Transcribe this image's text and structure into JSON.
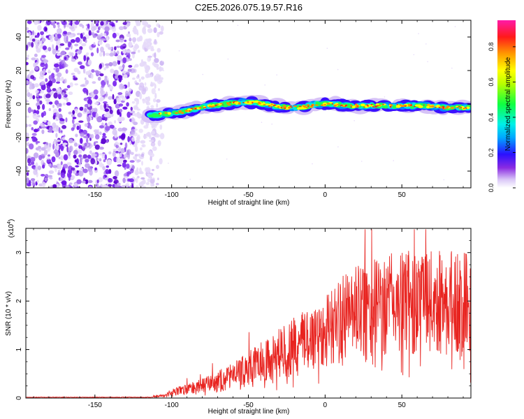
{
  "title": "C2E5.2026.075.19.57.R16",
  "colors": {
    "snr_line": "#e8231f",
    "noise_dark": "#6a00d8",
    "noise_light": "#d9c6f7"
  },
  "chart_data": [
    {
      "type": "heatmap",
      "name": "spectrogram",
      "xlabel": "Height of straight line (km)",
      "ylabel": "Frequency (Hz)",
      "xlim": [
        -195,
        95
      ],
      "ylim": [
        -50,
        50
      ],
      "x_ticks": [
        -150,
        -100,
        -50,
        0,
        50
      ],
      "y_ticks": [
        -40,
        -20,
        0,
        20,
        40
      ],
      "noise_region": [
        -195,
        -112
      ],
      "ridge_center": {
        "x": [
          -115,
          -105,
          -95,
          -85,
          -75,
          -65,
          -55,
          -45,
          -35,
          -25,
          -15,
          -5,
          5,
          15,
          25,
          35,
          45,
          55,
          65,
          75,
          85,
          95
        ],
        "freq": [
          -7,
          -6,
          -5,
          -3,
          -1,
          0,
          1,
          1,
          -1,
          -2,
          -2,
          0,
          0,
          -1,
          -1,
          -1,
          -1,
          -1,
          -1,
          -2,
          -2,
          -2
        ]
      },
      "colorbar": {
        "label": "Normalized spectral amplitude",
        "range": [
          0,
          0.95
        ],
        "ticks": [
          "0.0",
          "0.2",
          "0.4",
          "0.6",
          "0.8"
        ]
      }
    },
    {
      "type": "line",
      "name": "snr",
      "xlabel": "Height of straight line (km)",
      "ylabel": "SNR (10 * v/v)",
      "y_multiplier": "(x10",
      "y_multiplier_exp": "4",
      "y_multiplier_close": ")",
      "xlim": [
        -195,
        95
      ],
      "ylim": [
        0,
        3.5
      ],
      "x_ticks": [
        -150,
        -100,
        -50,
        0,
        50
      ],
      "y_ticks": [
        0,
        1,
        2,
        3
      ],
      "envelope": {
        "x": [
          -195,
          -120,
          -105,
          -100,
          -90,
          -80,
          -70,
          -60,
          -50,
          -40,
          -30,
          -20,
          -10,
          0,
          10,
          20,
          30,
          40,
          50,
          60,
          70,
          80,
          90,
          95
        ],
        "y": [
          0.01,
          0.01,
          0.05,
          0.12,
          0.18,
          0.25,
          0.35,
          0.45,
          0.6,
          0.75,
          0.9,
          1.05,
          1.2,
          1.35,
          1.55,
          1.7,
          1.8,
          1.85,
          1.9,
          1.95,
          1.9,
          1.9,
          1.9,
          1.95
        ]
      }
    }
  ]
}
